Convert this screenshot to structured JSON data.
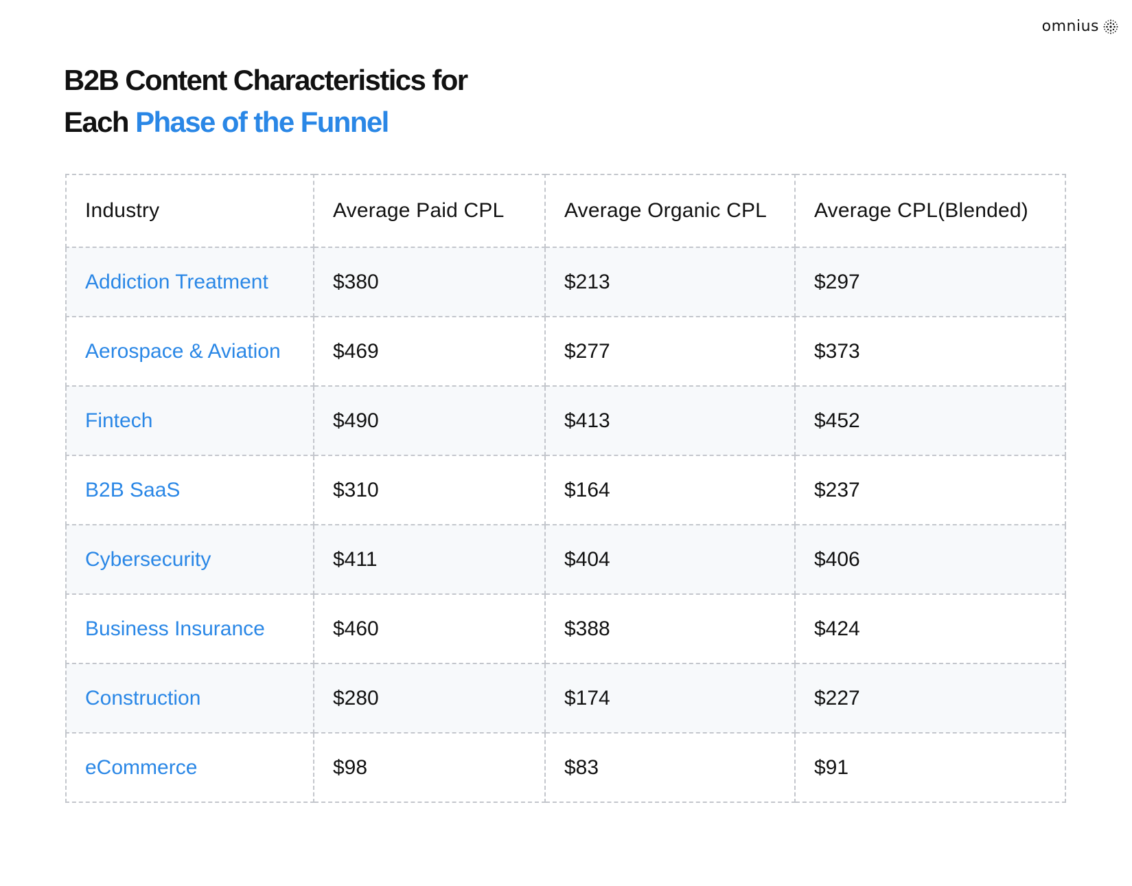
{
  "brand": {
    "name": "omnius",
    "icon": "starburst-logo-icon"
  },
  "title": {
    "line1": "B2B Content Characteristics for",
    "line2_prefix": "Each ",
    "line2_accent": "Phase of the Funnel"
  },
  "colors": {
    "accent": "#2a87e6",
    "text": "#111111",
    "border": "#c3c6cc",
    "row_shade": "#f7f9fb"
  },
  "table": {
    "headers": [
      "Industry",
      "Average Paid CPL",
      "Average Organic CPL",
      "Average CPL(Blended)"
    ],
    "rows": [
      {
        "industry": "Addiction Treatment",
        "paid": "$380",
        "organic": "$213",
        "blended": "$297"
      },
      {
        "industry": "Aerospace & Aviation",
        "paid": "$469",
        "organic": "$277",
        "blended": "$373"
      },
      {
        "industry": "Fintech",
        "paid": "$490",
        "organic": "$413",
        "blended": "$452"
      },
      {
        "industry": "B2B SaaS",
        "paid": "$310",
        "organic": "$164",
        "blended": "$237"
      },
      {
        "industry": "Cybersecurity",
        "paid": "$411",
        "organic": "$404",
        "blended": "$406"
      },
      {
        "industry": "Business Insurance",
        "paid": "$460",
        "organic": "$388",
        "blended": "$424"
      },
      {
        "industry": "Construction",
        "paid": "$280",
        "organic": "$174",
        "blended": "$227"
      },
      {
        "industry": "eCommerce",
        "paid": "$98",
        "organic": "$83",
        "blended": "$91"
      }
    ]
  }
}
